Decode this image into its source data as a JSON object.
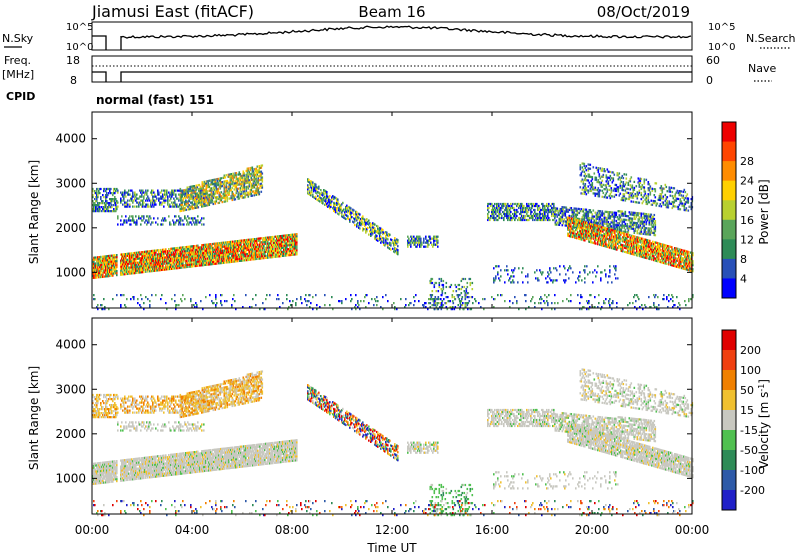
{
  "header": {
    "station": "Jiamusi East (fitACF)",
    "beam": "Beam 16",
    "date": "08/Oct/2019"
  },
  "top_panel": {
    "nsky_label": "N.Sky",
    "nsky_ticks": [
      "10^5",
      "10^0"
    ],
    "nsearch_label": "N.Search",
    "nsearch_ticks": [
      "10^5",
      "10^0"
    ],
    "freq_label": "Freq.",
    "freq_unit": "[MHz]",
    "freq_ticks": [
      "18",
      "8"
    ],
    "nave_label": "Nave",
    "nave_ticks": [
      "60",
      "0"
    ],
    "cpid_label": "CPID",
    "cpid_value": "normal (fast) 151"
  },
  "chart_data": [
    {
      "type": "heatmap",
      "name": "power-panel",
      "ylabel": "Slant Range [km]",
      "ylim": [
        200,
        4600
      ],
      "yticks": [
        "1000",
        "2000",
        "3000",
        "4000"
      ],
      "xlim": [
        0,
        24
      ],
      "colorbar": {
        "label": "Power [dB]",
        "ticks": [
          "4",
          "8",
          "12",
          "16",
          "20",
          "24",
          "28"
        ],
        "colors": [
          "#0000ff",
          "#2850b8",
          "#2e8b57",
          "#5aa55a",
          "#b8d030",
          "#ffd000",
          "#ff8c00",
          "#ff4500",
          "#ee0000"
        ]
      }
    },
    {
      "type": "heatmap",
      "name": "velocity-panel",
      "ylabel": "Slant Range [km]",
      "ylim": [
        200,
        4600
      ],
      "yticks": [
        "1000",
        "2000",
        "3000",
        "4000"
      ],
      "xlim": [
        0,
        24
      ],
      "xlabel": "Time UT",
      "xticks": [
        "00:00",
        "04:00",
        "08:00",
        "12:00",
        "16:00",
        "20:00",
        "00:00"
      ],
      "colorbar": {
        "label": "Velocity [m s-1]",
        "ticks": [
          "200",
          "100",
          "50",
          "15",
          "-15",
          "-50",
          "-100",
          "-200"
        ],
        "colors": [
          "#2020c8",
          "#2e5aa8",
          "#2e8b57",
          "#50c050",
          "#c8c8c0",
          "#f0c030",
          "#f08000",
          "#f04010",
          "#e00000"
        ]
      }
    }
  ]
}
